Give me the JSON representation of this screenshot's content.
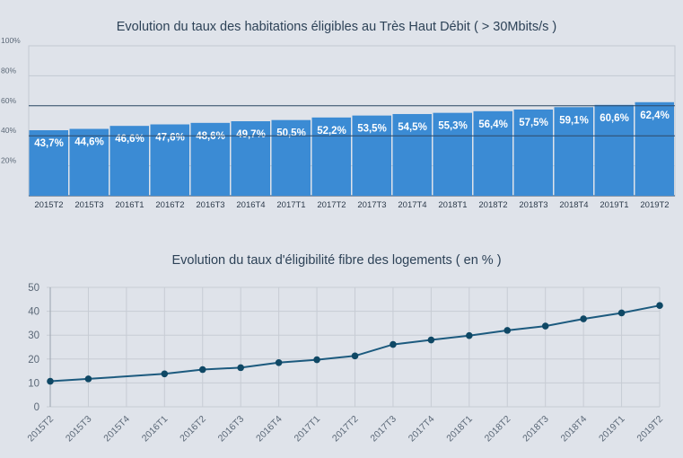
{
  "chart_data": [
    {
      "type": "bar",
      "title": "Evolution du taux des habitations éligibles au Très Haut Débit ( > 30Mbits/s )",
      "categories": [
        "2015T2",
        "2015T3",
        "2016T1",
        "2016T2",
        "2016T3",
        "2016T4",
        "2017T1",
        "2017T2",
        "2017T3",
        "2017T4",
        "2018T1",
        "2018T2",
        "2018T3",
        "2018T4",
        "2019T1",
        "2019T2"
      ],
      "values": [
        43.7,
        44.6,
        46.6,
        47.6,
        48.6,
        49.7,
        50.5,
        52.2,
        53.5,
        54.5,
        55.3,
        56.4,
        57.5,
        59.1,
        60.6,
        62.4
      ],
      "labels": [
        "43,7%",
        "44,6%",
        "46,6%",
        "47,6%",
        "48,6%",
        "49,7%",
        "50,5%",
        "52,2%",
        "53,5%",
        "54,5%",
        "55,3%",
        "56,4%",
        "57,5%",
        "59,1%",
        "60,6%",
        "62,4%"
      ],
      "yticks": [
        20,
        40,
        60,
        80,
        100
      ],
      "ytick_labels": [
        "20%",
        "40%",
        "60%",
        "80%",
        "100%"
      ],
      "ylim": [
        0,
        100
      ],
      "bar_color": "#3b8bd4",
      "grid_color": "#2f4a66"
    },
    {
      "type": "line",
      "title": "Evolution du taux d'éligibilité fibre des logements ( en % )",
      "categories": [
        "2015T2",
        "2015T3",
        "2015T4",
        "2016T1",
        "2016T2",
        "2016T3",
        "2016T4",
        "2017T1",
        "2017T2",
        "2017T3",
        "2017T4",
        "2018T1",
        "2018T2",
        "2018T3",
        "2018T4",
        "2019T1",
        "2019T2"
      ],
      "points": [
        [
          0,
          10.7
        ],
        [
          1,
          11.7
        ],
        [
          3,
          13.8
        ],
        [
          4,
          15.6
        ],
        [
          5,
          16.4
        ],
        [
          6,
          18.5
        ],
        [
          7,
          19.7
        ],
        [
          8,
          21.3
        ],
        [
          9,
          26.1
        ],
        [
          10,
          28.0
        ],
        [
          11,
          29.8
        ],
        [
          12,
          32.0
        ],
        [
          13,
          33.8
        ],
        [
          14,
          36.8
        ],
        [
          15,
          39.3
        ],
        [
          16,
          42.4
        ]
      ],
      "yticks": [
        0,
        10,
        20,
        30,
        40,
        50
      ],
      "ylim": [
        0,
        50
      ],
      "line_color": "#1c5a7e",
      "marker_color": "#0f4865",
      "grid_color": "#c7ccd4"
    }
  ]
}
